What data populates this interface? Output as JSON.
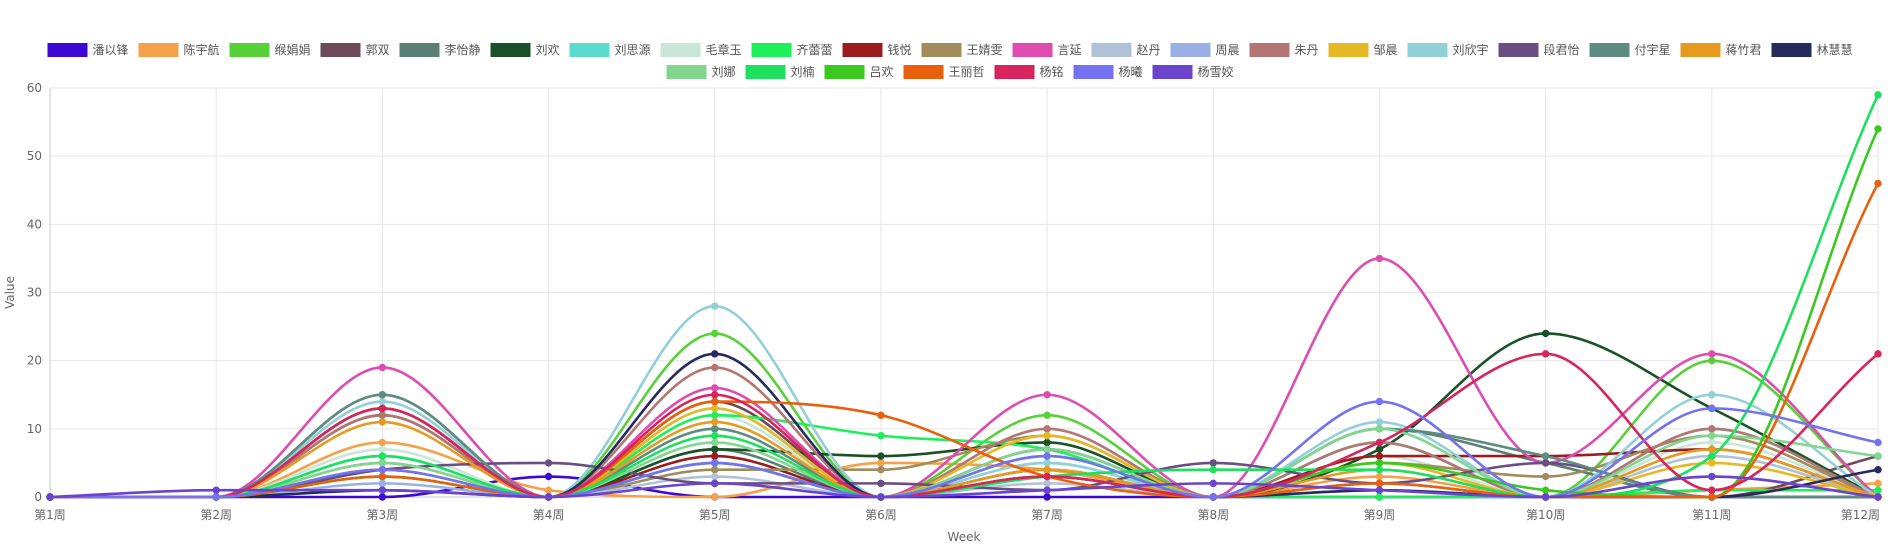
{
  "chart_data": {
    "type": "line",
    "title": "",
    "xlabel": "Week",
    "ylabel": "Value",
    "ylim": [
      0,
      60
    ],
    "yticks": [
      0,
      10,
      20,
      30,
      40,
      50,
      60
    ],
    "grid": true,
    "legend_position": "top",
    "categories": [
      "第1周",
      "第2周",
      "第3周",
      "第4周",
      "第5周",
      "第6周",
      "第7周",
      "第8周",
      "第9周",
      "第10周",
      "第11周",
      "第12周"
    ],
    "series": [
      {
        "name": "潘以锋",
        "color": "#3b08d6",
        "values": [
          0,
          0,
          0,
          3,
          0,
          0,
          0,
          0,
          0,
          0,
          0,
          0
        ]
      },
      {
        "name": "陈宇航",
        "color": "#f4a14a",
        "values": [
          0,
          0,
          8,
          1,
          0,
          5,
          4,
          0,
          3,
          0,
          1,
          2
        ]
      },
      {
        "name": "缑娟娟",
        "color": "#58d03a",
        "values": [
          0,
          0,
          4,
          0,
          24,
          0,
          12,
          0,
          8,
          0,
          20,
          0
        ]
      },
      {
        "name": "郭双",
        "color": "#6e4a58",
        "values": [
          0,
          0,
          13,
          0,
          14,
          0,
          4,
          0,
          2,
          0,
          0,
          6
        ]
      },
      {
        "name": "李怡静",
        "color": "#5a8076",
        "values": [
          0,
          0,
          15,
          0,
          7,
          0,
          3,
          0,
          10,
          5,
          0,
          0
        ]
      },
      {
        "name": "刘欢",
        "color": "#1b5128",
        "values": [
          0,
          0,
          12,
          0,
          7,
          6,
          8,
          0,
          7,
          24,
          13,
          0
        ]
      },
      {
        "name": "刘思源",
        "color": "#5adbd0",
        "values": [
          0,
          0,
          6,
          0,
          13,
          0,
          6,
          0,
          8,
          0,
          10,
          0
        ]
      },
      {
        "name": "毛章玉",
        "color": "#c9e6d8",
        "values": [
          0,
          0,
          7,
          0,
          12,
          0,
          5,
          0,
          6,
          0,
          8,
          0
        ]
      },
      {
        "name": "齐蕾蕾",
        "color": "#1ef05c",
        "values": [
          0,
          0,
          3,
          0,
          12,
          9,
          7,
          0,
          0,
          0,
          1,
          1
        ]
      },
      {
        "name": "钱悦",
        "color": "#9b1c1c",
        "values": [
          0,
          0,
          13,
          0,
          6,
          0,
          3,
          0,
          6,
          6,
          7,
          0
        ]
      },
      {
        "name": "王婧雯",
        "color": "#a38b5c",
        "values": [
          0,
          0,
          5,
          0,
          4,
          4,
          9,
          0,
          5,
          3,
          9,
          0
        ]
      },
      {
        "name": "言延",
        "color": "#de4caf",
        "values": [
          0,
          0,
          19,
          0,
          16,
          0,
          15,
          0,
          35,
          5,
          21,
          0
        ]
      },
      {
        "name": "赵丹",
        "color": "#b0c2d6",
        "values": [
          0,
          0,
          3,
          0,
          3,
          0,
          2,
          0,
          1,
          0,
          6,
          0
        ]
      },
      {
        "name": "周晨",
        "color": "#98b0e6",
        "values": [
          0,
          0,
          2,
          0,
          5,
          0,
          3,
          0,
          2,
          0,
          3,
          0
        ]
      },
      {
        "name": "朱丹",
        "color": "#b47672",
        "values": [
          0,
          0,
          12,
          0,
          19,
          0,
          10,
          0,
          8,
          0,
          10,
          0
        ]
      },
      {
        "name": "邹晨",
        "color": "#e4b924",
        "values": [
          0,
          0,
          4,
          0,
          13,
          0,
          9,
          0,
          5,
          0,
          5,
          0
        ]
      },
      {
        "name": "刘欣宇",
        "color": "#92d0d8",
        "values": [
          0,
          0,
          14,
          0,
          28,
          0,
          5,
          0,
          11,
          0,
          15,
          0
        ]
      },
      {
        "name": "段君怡",
        "color": "#694d83",
        "values": [
          0,
          0,
          4,
          5,
          2,
          2,
          1,
          5,
          2,
          5,
          0,
          0
        ]
      },
      {
        "name": "付宇星",
        "color": "#5f8c80",
        "values": [
          0,
          0,
          15,
          0,
          10,
          0,
          4,
          0,
          10,
          6,
          0,
          0
        ]
      },
      {
        "name": "蒋竹君",
        "color": "#e69a20",
        "values": [
          0,
          0,
          11,
          0,
          11,
          0,
          4,
          0,
          4,
          0,
          7,
          0
        ]
      },
      {
        "name": "林慧慧",
        "color": "#262b5c",
        "values": [
          0,
          0,
          1,
          0,
          21,
          0,
          7,
          0,
          1,
          0,
          0,
          4
        ]
      },
      {
        "name": "刘娜",
        "color": "#82d690",
        "values": [
          0,
          0,
          5,
          0,
          8,
          0,
          7,
          0,
          10,
          0,
          9,
          6
        ]
      },
      {
        "name": "刘楠",
        "color": "#1de05e",
        "values": [
          0,
          0,
          6,
          0,
          9,
          0,
          3,
          4,
          4,
          0,
          6,
          59
        ]
      },
      {
        "name": "吕欢",
        "color": "#3ac821",
        "values": [
          0,
          0,
          3,
          0,
          5,
          0,
          3,
          0,
          5,
          1,
          0,
          54
        ]
      },
      {
        "name": "王丽哲",
        "color": "#e9600c",
        "values": [
          0,
          0,
          3,
          0,
          14,
          12,
          3,
          0,
          2,
          0,
          0,
          46
        ]
      },
      {
        "name": "杨铭",
        "color": "#d8245c",
        "values": [
          0,
          0,
          13,
          0,
          15,
          0,
          3,
          0,
          8,
          21,
          1,
          21
        ]
      },
      {
        "name": "杨曦",
        "color": "#7372f0",
        "values": [
          0,
          0,
          4,
          0,
          5,
          0,
          6,
          0,
          14,
          0,
          13,
          8
        ]
      },
      {
        "name": "杨雪姣",
        "color": "#6a44cc",
        "values": [
          0,
          1,
          1,
          0,
          2,
          0,
          1,
          2,
          1,
          0,
          3,
          0
        ]
      }
    ]
  }
}
